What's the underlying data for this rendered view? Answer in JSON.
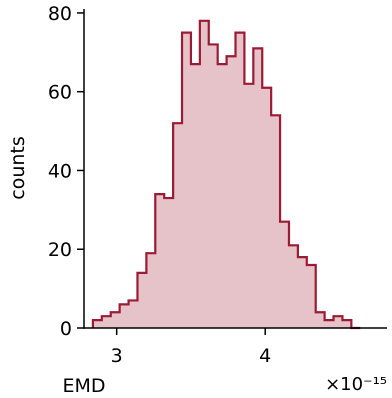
{
  "chart_data": {
    "type": "histogram",
    "xlabel": "EMD",
    "ylabel": "counts",
    "x_offset_label": "×10⁻¹⁵",
    "xlim": [
      2.78,
      4.82
    ],
    "ylim": [
      0,
      81
    ],
    "xticks": [
      {
        "value": 3,
        "label": "3"
      },
      {
        "value": 4,
        "label": "4"
      }
    ],
    "yticks": [
      {
        "value": 0,
        "label": "0"
      },
      {
        "value": 20,
        "label": "20"
      },
      {
        "value": 40,
        "label": "40"
      },
      {
        "value": 60,
        "label": "60"
      },
      {
        "value": 80,
        "label": "80"
      }
    ],
    "bin_edges": [
      2.84,
      2.9,
      2.96,
      3.02,
      3.08,
      3.14,
      3.2,
      3.26,
      3.32,
      3.38,
      3.44,
      3.5,
      3.56,
      3.62,
      3.68,
      3.74,
      3.8,
      3.86,
      3.92,
      3.98,
      4.04,
      4.1,
      4.16,
      4.22,
      4.28,
      4.34,
      4.4,
      4.46,
      4.52,
      4.58,
      4.64
    ],
    "counts": [
      2,
      3,
      4,
      6,
      7,
      14,
      19,
      34,
      33,
      52,
      75,
      67,
      78,
      72,
      67,
      69,
      75,
      62,
      71,
      61,
      54,
      27,
      21,
      18,
      16,
      4,
      2,
      3,
      2,
      0
    ],
    "series_color": "#9a1b33",
    "fill_color": "#e5c3c9"
  }
}
